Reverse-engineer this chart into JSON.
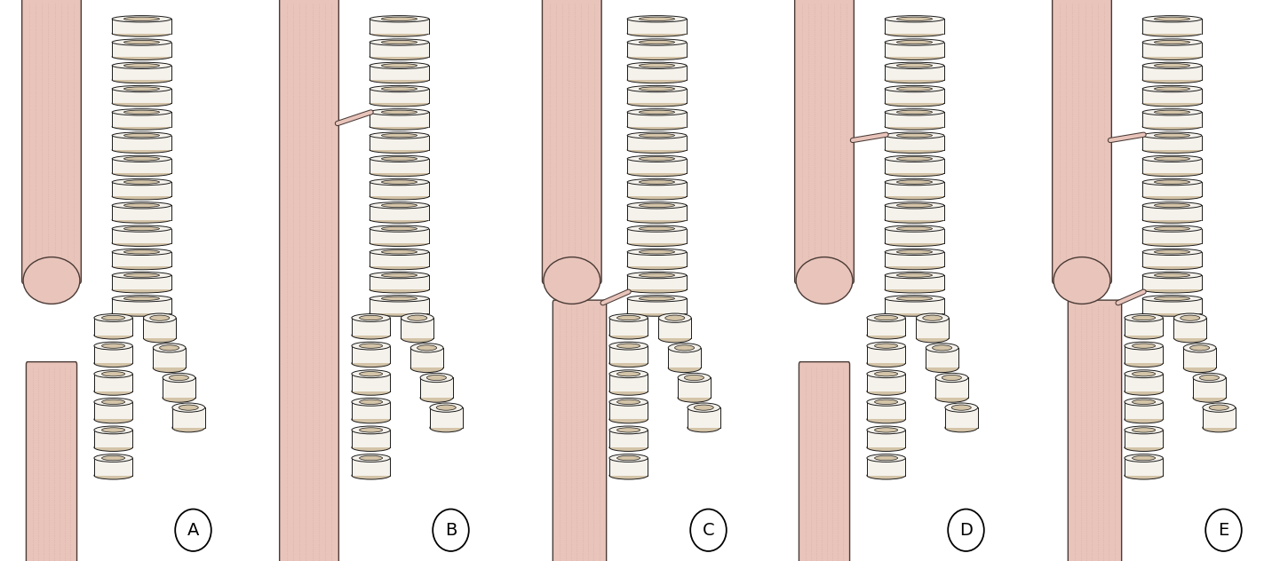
{
  "background_color": "#ffffff",
  "fig_width": 14.5,
  "fig_height": 6.32,
  "dpi": 100,
  "n_panels": 5,
  "panel_labels": [
    "A",
    "B",
    "C",
    "D",
    "E"
  ],
  "trachea_ring_outer": "#f0ebe0",
  "trachea_ring_band": "#d9cdb8",
  "trachea_ring_inner": "#f8f5f0",
  "trachea_outline": "#1a1a1a",
  "trachea_lumen": "#e8e2d8",
  "esoph_fill": "#e8c4bb",
  "esoph_stripe": "#c9a090",
  "esoph_outline": "#4a3a35",
  "esoph_dark_edge": "#c4a090",
  "label_fontsize": 14,
  "ring_tan": "#d4c4a8",
  "ring_white": "#f5f2ec",
  "ring_dark": "#b8a888"
}
